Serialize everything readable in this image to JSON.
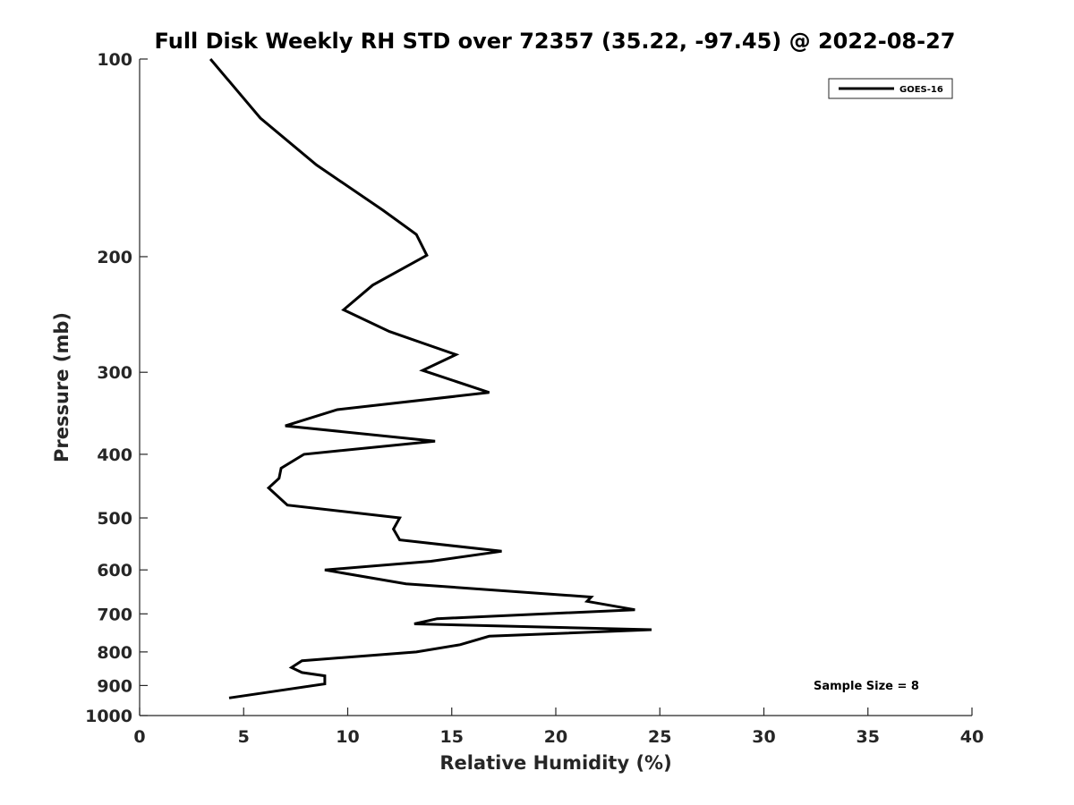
{
  "chart_data": {
    "type": "line",
    "title": "Full Disk Weekly RH STD over 72357 (35.22, -97.45) @ 2022-08-27",
    "xlabel": "Relative Humidity (%)",
    "ylabel": "Pressure (mb)",
    "xlim": [
      0,
      40
    ],
    "ylim": [
      100,
      1000
    ],
    "yscale": "log",
    "yreversed": true,
    "grid": false,
    "xticks": [
      0,
      5,
      10,
      15,
      20,
      25,
      30,
      35,
      40
    ],
    "xtick_labels": [
      "0",
      "5",
      "10",
      "15",
      "20",
      "25",
      "30",
      "35",
      "40"
    ],
    "yticks": [
      100,
      200,
      300,
      400,
      500,
      600,
      700,
      800,
      900,
      1000
    ],
    "ytick_labels": [
      "100",
      "200",
      "300",
      "400",
      "500",
      "600",
      "700",
      "800",
      "900",
      "1000"
    ],
    "legend_position": "top-right",
    "annotation": "Sample Size = 8",
    "series": [
      {
        "name": "GOES-16",
        "color": "#000000",
        "x": [
          3.4,
          5.8,
          8.5,
          11.7,
          13.3,
          13.8,
          11.2,
          9.8,
          12.0,
          15.2,
          13.6,
          16.8,
          9.5,
          7.0,
          14.2,
          7.9,
          6.8,
          6.7,
          6.2,
          7.1,
          12.5,
          12.2,
          12.5,
          17.4,
          14.0,
          8.9,
          12.8,
          21.7,
          21.5,
          23.8,
          14.3,
          13.2,
          24.6,
          16.8,
          15.4,
          13.3,
          7.8,
          7.3,
          7.8,
          8.9,
          8.9,
          4.3
        ],
        "y": [
          100,
          123,
          145,
          170,
          185,
          199,
          221,
          241,
          260,
          282,
          298,
          322,
          342,
          362,
          382,
          400,
          420,
          435,
          450,
          478,
          500,
          520,
          540,
          562,
          582,
          600,
          630,
          660,
          670,
          690,
          712,
          725,
          740,
          757,
          780,
          800,
          825,
          845,
          860,
          870,
          895,
          940
        ]
      }
    ]
  }
}
